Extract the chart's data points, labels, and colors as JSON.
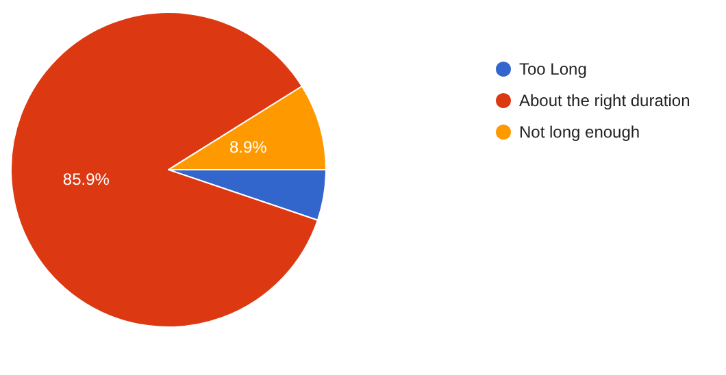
{
  "chart_data": {
    "type": "pie",
    "categories": [
      "Too Long",
      "About the right duration",
      "Not long enough"
    ],
    "values": [
      5.2,
      85.9,
      8.9
    ],
    "colors": [
      "#3366cc",
      "#dc3912",
      "#ff9900"
    ],
    "value_labels": [
      null,
      "85.9%",
      "8.9%"
    ],
    "legend": "top right"
  }
}
